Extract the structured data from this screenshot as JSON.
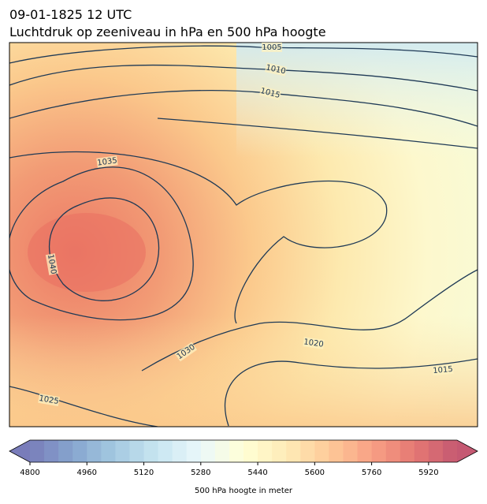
{
  "header": {
    "date": "09-01-1825 12 UTC",
    "title": "Luchtdruk op zeeniveau in hPa en 500 hPa hoogte"
  },
  "map": {
    "contour_labels": [
      1005,
      1010,
      1015,
      1035,
      1040,
      1030,
      1020,
      1015,
      1025
    ]
  },
  "colorbar": {
    "label": "500 hPa hoogte in meter",
    "range": [
      4800,
      6000
    ],
    "ticks": [
      4800,
      4960,
      5120,
      5280,
      5440,
      5600,
      5760,
      5920
    ]
  }
}
